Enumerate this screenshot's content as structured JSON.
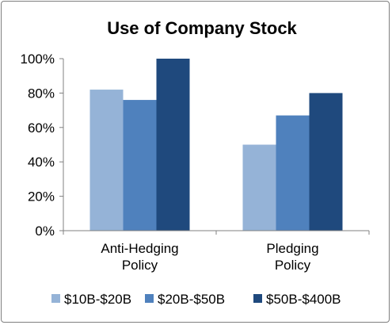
{
  "chart_data": {
    "type": "bar",
    "title": "Use of Company Stock",
    "categories": [
      [
        "Anti-Hedging",
        "Policy"
      ],
      [
        "Pledging",
        "Policy"
      ]
    ],
    "series": [
      {
        "name": "$10B-$20B",
        "values": [
          82,
          50
        ],
        "color": "#95b3d7"
      },
      {
        "name": "$20B-$50B",
        "values": [
          76,
          67
        ],
        "color": "#4f81bd"
      },
      {
        "name": "$50B-$400B",
        "values": [
          100,
          80
        ],
        "color": "#1f497d"
      }
    ],
    "ylim": [
      0,
      100
    ],
    "yticks": [
      "0%",
      "20%",
      "40%",
      "60%",
      "80%",
      "100%"
    ],
    "ytick_values": [
      0,
      20,
      40,
      60,
      80,
      100
    ],
    "grid": false,
    "legend_position": "bottom",
    "xlabel": "",
    "ylabel": ""
  }
}
